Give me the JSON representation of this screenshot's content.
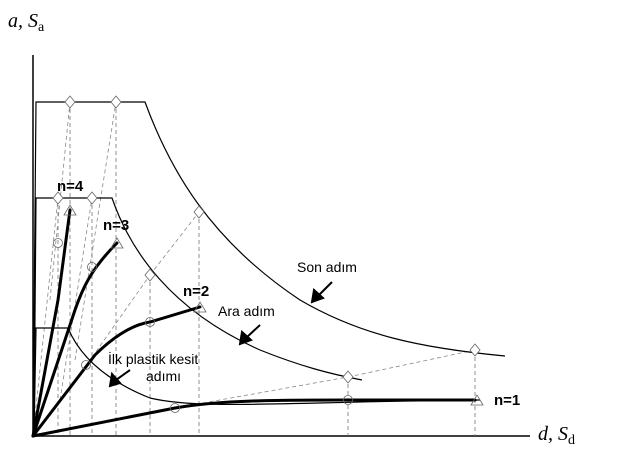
{
  "axes": {
    "y_label": "a, S",
    "y_sub": "a",
    "x_label": "d, S",
    "x_sub": "d"
  },
  "labels": {
    "n4": "n=4",
    "n3": "n=3",
    "n2": "n=2",
    "n1": "n=1",
    "son_adim": "Son adım",
    "ara_adim": "Ara adım",
    "ilk_line1": "İlk plastik kesit",
    "ilk_line2": "adımı"
  },
  "colors": {
    "line": "#000000",
    "dashed": "#808080",
    "marker": "#666666"
  }
}
